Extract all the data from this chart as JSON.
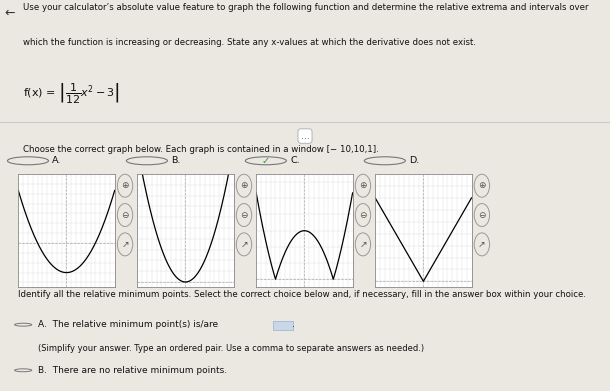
{
  "bg_color": "#ebe8e2",
  "white_panel": "#f5f3ef",
  "header_text1": "Use your calculator’s absolute value feature to graph the following function and determine the relative extrema and intervals over",
  "header_text2": "which the function is increasing or decreasing. State any x-values at which the derivative does not exist.",
  "window_text": "Choose the correct graph below. Each graph is contained in a window [− 10,10,1].",
  "graph_labels": [
    "A.",
    "B.",
    "C.",
    "D."
  ],
  "correct_graph": "C",
  "bottom_text": "Identify all the relative minimum points. Select the correct choice below and, if necessary, fill in the answer box within your choice.",
  "choiceA_line1": "A.  The relative minimum point(s) is/are",
  "choiceA_line2": "(Simplify your answer. Type an ordered pair. Use a comma to separate answers as needed.)",
  "choiceB_line": "B.  There are no relative minimum points.",
  "arrow": "←",
  "dots": "..."
}
